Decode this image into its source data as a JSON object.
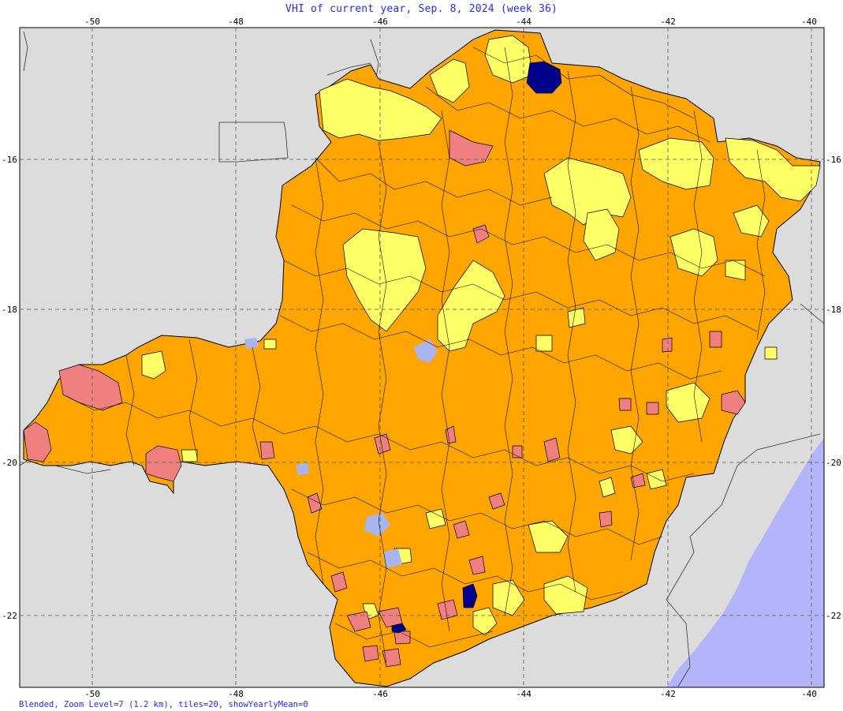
{
  "title": "VHI of current year, Sep. 8, 2024 (week 36)",
  "footer": "Blended, Zoom Level=7 (1.2 km), tiles=20, showYearlyMean=0",
  "axes": {
    "longitude_ticks": [
      "-50",
      "-48",
      "-46",
      "-44",
      "-42",
      "-40"
    ],
    "latitude_ticks": [
      "-16",
      "-18",
      "-20",
      "-22"
    ]
  },
  "colors": {
    "background_land": "#dcdcdc",
    "ocean": "#b4b4fa",
    "state_fill_orange": "#ffa500",
    "state_fill_yellow": "#ffff66",
    "state_fill_salmon": "#f08080",
    "state_fill_dark_blue": "#00008b",
    "municipality_border": "#000000",
    "grid": "#555555",
    "title_text": "#2b2bd6"
  },
  "legend_categories": [
    "orange",
    "yellow",
    "salmon",
    "dark-blue"
  ]
}
